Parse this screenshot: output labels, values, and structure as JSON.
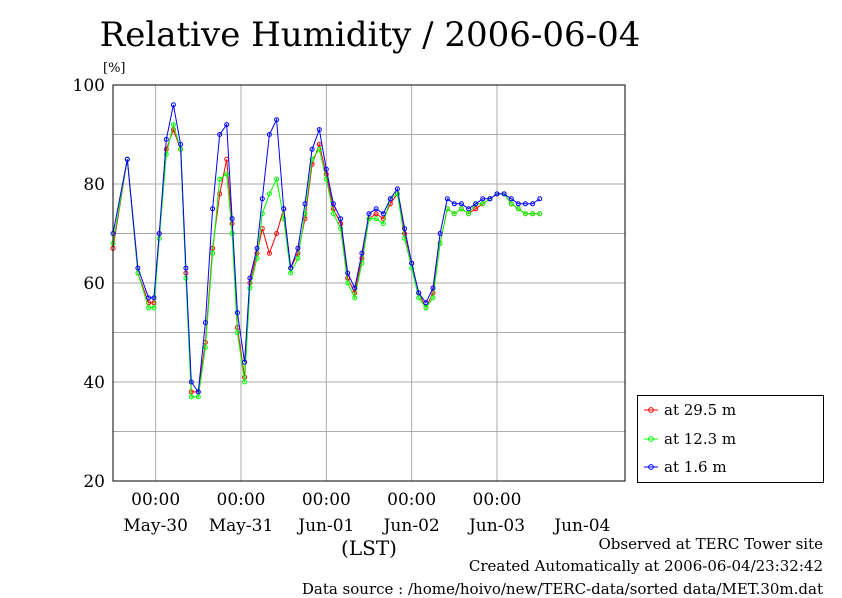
{
  "chart_data": {
    "type": "line",
    "title": "Relative Humidity / 2006-06-04",
    "ylabel": "[%]",
    "xlabel": "(LST)",
    "ylim": [
      20,
      100
    ],
    "yticks": [
      20,
      40,
      60,
      80,
      100
    ],
    "xlim": [
      0,
      6
    ],
    "x_unit": "days since 2006-05-29 12:00 LST",
    "time_tick_label": "00:00",
    "time_tick_positions": [
      0.5,
      1.5,
      2.5,
      3.5,
      4.5
    ],
    "date_labels": [
      "May-30",
      "May-31",
      "Jun-01",
      "Jun-02",
      "Jun-03",
      "Jun-04"
    ],
    "grid": true,
    "legend_position": "right",
    "x": [
      0.0,
      0.167,
      0.292,
      0.417,
      0.479,
      0.542,
      0.625,
      0.708,
      0.792,
      0.854,
      0.917,
      1.0,
      1.083,
      1.167,
      1.25,
      1.333,
      1.396,
      1.458,
      1.542,
      1.604,
      1.688,
      1.75,
      1.833,
      1.917,
      2.0,
      2.083,
      2.167,
      2.25,
      2.333,
      2.417,
      2.5,
      2.583,
      2.667,
      2.75,
      2.833,
      2.917,
      3.0,
      3.083,
      3.167,
      3.25,
      3.333,
      3.417,
      3.5,
      3.583,
      3.667,
      3.75,
      3.833,
      3.917,
      4.0,
      4.083,
      4.167,
      4.25,
      4.333,
      4.417,
      4.5,
      4.583,
      4.667,
      4.75,
      4.833,
      4.917,
      5.0
    ],
    "series": [
      {
        "name": "at 29.5 m",
        "color": "#ff0000",
        "values": [
          67,
          85,
          62,
          56,
          56,
          70,
          87,
          91,
          87,
          62,
          38,
          38,
          48,
          67,
          78,
          85,
          72,
          51,
          41,
          60,
          66,
          71,
          66,
          70,
          75,
          63,
          66,
          73,
          84,
          88,
          82,
          75,
          72,
          61,
          58,
          65,
          73,
          74,
          73,
          76,
          78,
          70,
          64,
          58,
          55,
          58,
          68,
          75,
          74,
          75,
          74,
          75,
          76,
          77,
          78,
          78,
          76,
          75,
          74,
          74,
          74
        ]
      },
      {
        "name": "at 12.3 m",
        "color": "#00ff00",
        "values": [
          68,
          85,
          62,
          55,
          55,
          69,
          86,
          92,
          87,
          61,
          37,
          37,
          47,
          66,
          81,
          82,
          70,
          50,
          40,
          59,
          65,
          74,
          78,
          81,
          73,
          62,
          65,
          74,
          85,
          87,
          81,
          74,
          71,
          60,
          57,
          64,
          73,
          73,
          72,
          77,
          78,
          69,
          63,
          57,
          55,
          57,
          68,
          75,
          74,
          75,
          74,
          76,
          76,
          77,
          78,
          78,
          76,
          75,
          74,
          74,
          74
        ]
      },
      {
        "name": "at 1.6 m",
        "color": "#0000ff",
        "values": [
          70,
          85,
          63,
          57,
          57,
          70,
          89,
          96,
          88,
          63,
          40,
          38,
          52,
          75,
          90,
          92,
          73,
          54,
          44,
          61,
          67,
          77,
          90,
          93,
          75,
          63,
          67,
          76,
          87,
          91,
          83,
          76,
          73,
          62,
          59,
          66,
          74,
          75,
          74,
          77,
          79,
          71,
          64,
          58,
          56,
          59,
          70,
          77,
          76,
          76,
          75,
          76,
          77,
          77,
          78,
          78,
          77,
          76,
          76,
          76,
          77
        ]
      }
    ]
  },
  "footer": {
    "observed": "Observed at TERC Tower site",
    "created": "Created Automatically at 2006-06-04/23:32:42",
    "source": "Data source : /home/hoivo/new/TERC-data/sorted  data/MET.30m.dat"
  }
}
